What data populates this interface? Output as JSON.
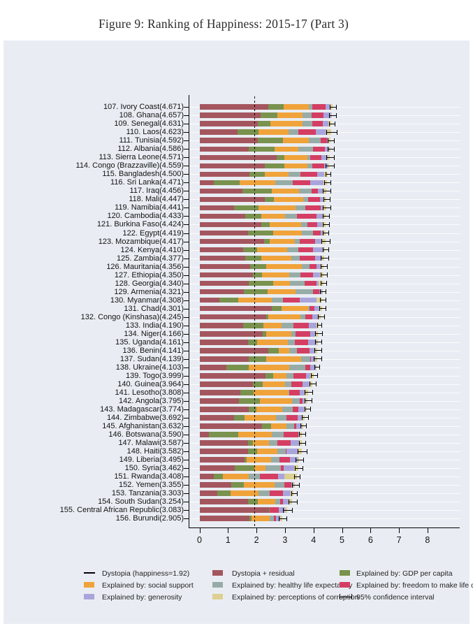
{
  "figure": {
    "title": "Figure 9: Ranking of Happiness: 2015-17 (Part 3)"
  },
  "colors": {
    "panel_bg": "#e9edf3",
    "residual": "#a4565f",
    "gdp": "#79924e",
    "social": "#f0a33a",
    "health": "#97aca7",
    "freedom": "#d53e63",
    "generosity": "#a9a5dc",
    "corruption": "#ddd092",
    "axis": "#000000"
  },
  "legend": {
    "items": [
      {
        "type": "line",
        "key": "dystopia_line",
        "label": "Dystopia (happiness=1.92)"
      },
      {
        "type": "swatch",
        "key": "residual",
        "label": "Dystopia + residual"
      },
      {
        "type": "swatch",
        "key": "gdp",
        "label": "Explained by: GDP per capita"
      },
      {
        "type": "swatch",
        "key": "social",
        "label": "Explained by: social support"
      },
      {
        "type": "swatch",
        "key": "health",
        "label": "Explained by: healthy life expectancy"
      },
      {
        "type": "swatch",
        "key": "freedom",
        "label": "Explained by: freedom to make life choices"
      },
      {
        "type": "swatch",
        "key": "generosity",
        "label": "Explained by: generosity"
      },
      {
        "type": "swatch",
        "key": "corruption",
        "label": "Explained by: perceptions of corruption"
      },
      {
        "type": "errorbar",
        "key": "ci",
        "label": "95% confidence interval"
      }
    ]
  },
  "chart_data": {
    "type": "bar",
    "orientation": "horizontal-stacked",
    "title": "Figure 9: Ranking of Happiness: 2015-17 (Part 3)",
    "xlabel": "",
    "ylabel": "",
    "xlim": [
      0,
      8
    ],
    "x_ticks": [
      "0",
      "1",
      "2",
      "3",
      "4",
      "5",
      "6",
      "7",
      "8"
    ],
    "dystopia_line_value": 1.92,
    "stack_order": [
      "residual",
      "gdp",
      "social",
      "health",
      "freedom",
      "generosity",
      "corruption"
    ],
    "note": "segments = explained-by components; residual = score minus sum of components (Dystopia + residual, drawn first); ci = 95% confidence half-width",
    "countries": [
      {
        "rank": 107,
        "name": "Ivory Coast",
        "score": 4.671,
        "label": "107. Ivory Coast(4.671)",
        "gdp": 0.54,
        "social": 0.87,
        "health": 0.12,
        "freedom": 0.47,
        "generosity": 0.15,
        "corruption": 0.1,
        "ci": 0.1
      },
      {
        "rank": 108,
        "name": "Ghana",
        "score": 4.657,
        "label": "108. Ghana(4.657)",
        "gdp": 0.59,
        "social": 0.9,
        "health": 0.31,
        "freedom": 0.42,
        "generosity": 0.26,
        "corruption": 0.04,
        "ci": 0.1
      },
      {
        "rank": 109,
        "name": "Senegal",
        "score": 4.631,
        "label": "109. Senegal(4.631)",
        "gdp": 0.43,
        "social": 1.14,
        "health": 0.33,
        "freedom": 0.37,
        "generosity": 0.19,
        "corruption": 0.12,
        "ci": 0.09
      },
      {
        "rank": 110,
        "name": "Laos",
        "score": 4.623,
        "label": "110. Laos(4.623)",
        "gdp": 0.72,
        "social": 1.07,
        "health": 0.33,
        "freedom": 0.63,
        "generosity": 0.36,
        "corruption": 0.17,
        "ci": 0.17
      },
      {
        "rank": 111,
        "name": "Tunisia",
        "score": 4.592,
        "label": "111. Tunisia(4.592)",
        "gdp": 0.89,
        "social": 0.9,
        "health": 0.43,
        "freedom": 0.21,
        "generosity": 0.06,
        "corruption": 0.06,
        "ci": 0.09
      },
      {
        "rank": 112,
        "name": "Albania",
        "score": 4.586,
        "label": "112. Albania(4.586)",
        "gdp": 0.92,
        "social": 0.82,
        "health": 0.51,
        "freedom": 0.42,
        "generosity": 0.16,
        "corruption": 0.03,
        "ci": 0.1
      },
      {
        "rank": 113,
        "name": "Sierra Leone",
        "score": 4.571,
        "label": "113. Sierra Leone(4.571)",
        "gdp": 0.26,
        "social": 0.81,
        "health": 0.1,
        "freedom": 0.39,
        "generosity": 0.22,
        "corruption": 0.08,
        "ci": 0.12
      },
      {
        "rank": 114,
        "name": "Congo (Brazzaville)",
        "score": 4.559,
        "label": "114. Congo (Brazzaville)(4.559)",
        "gdp": 0.68,
        "social": 0.81,
        "health": 0.19,
        "freedom": 0.4,
        "generosity": 0.12,
        "corruption": 0.07,
        "ci": 0.13
      },
      {
        "rank": 115,
        "name": "Bangladesh",
        "score": 4.5,
        "label": "115. Bangladesh(4.500)",
        "gdp": 0.53,
        "social": 0.85,
        "health": 0.42,
        "freedom": 0.58,
        "generosity": 0.25,
        "corruption": 0.12,
        "ci": 0.08
      },
      {
        "rank": 116,
        "name": "Sri Lanka",
        "score": 4.471,
        "label": "116. Sri Lanka(4.471)",
        "gdp": 0.92,
        "social": 1.25,
        "health": 0.6,
        "freedom": 0.61,
        "generosity": 0.48,
        "corruption": 0.11,
        "ci": 0.1
      },
      {
        "rank": 117,
        "name": "Iraq",
        "score": 4.456,
        "label": "117. Iraq(4.456)",
        "gdp": 1.01,
        "social": 0.97,
        "health": 0.43,
        "freedom": 0.24,
        "generosity": 0.19,
        "corruption": 0.1,
        "ci": 0.12
      },
      {
        "rank": 118,
        "name": "Mali",
        "score": 4.447,
        "label": "118. Mali(4.447)",
        "gdp": 0.31,
        "social": 1.04,
        "health": 0.16,
        "freedom": 0.41,
        "generosity": 0.14,
        "corruption": 0.09,
        "ci": 0.1
      },
      {
        "rank": 119,
        "name": "Namibia",
        "score": 4.441,
        "label": "119. Namibia(4.441)",
        "gdp": 0.87,
        "social": 1.28,
        "health": 0.36,
        "freedom": 0.52,
        "generosity": 0.1,
        "corruption": 0.1,
        "ci": 0.12
      },
      {
        "rank": 120,
        "name": "Cambodia",
        "score": 4.433,
        "label": "120. Cambodia(4.433)",
        "gdp": 0.55,
        "social": 0.83,
        "health": 0.42,
        "freedom": 0.69,
        "generosity": 0.26,
        "corruption": 0.07,
        "ci": 0.1
      },
      {
        "rank": 121,
        "name": "Burkina Faso",
        "score": 4.424,
        "label": "121. Burkina Faso(4.424)",
        "gdp": 0.31,
        "social": 1.1,
        "health": 0.22,
        "freedom": 0.33,
        "generosity": 0.18,
        "corruption": 0.12,
        "ci": 0.1
      },
      {
        "rank": 122,
        "name": "Egypt",
        "score": 4.419,
        "label": "122. Egypt(4.419)",
        "gdp": 0.87,
        "social": 1.01,
        "health": 0.4,
        "freedom": 0.26,
        "generosity": 0.08,
        "corruption": 0.09,
        "ci": 0.09
      },
      {
        "rank": 123,
        "name": "Mozambique",
        "score": 4.417,
        "label": "123. Mozambique(4.417)",
        "gdp": 0.2,
        "social": 0.9,
        "health": 0.17,
        "freedom": 0.53,
        "generosity": 0.22,
        "corruption": 0.14,
        "ci": 0.13
      },
      {
        "rank": 124,
        "name": "Kenya",
        "score": 4.41,
        "label": "124. Kenya(4.410)",
        "gdp": 0.49,
        "social": 1.05,
        "health": 0.4,
        "freedom": 0.52,
        "generosity": 0.36,
        "corruption": 0.06,
        "ci": 0.08
      },
      {
        "rank": 125,
        "name": "Zambia",
        "score": 4.377,
        "label": "125. Zambia(4.377)",
        "gdp": 0.56,
        "social": 1.05,
        "health": 0.3,
        "freedom": 0.53,
        "generosity": 0.25,
        "corruption": 0.08,
        "ci": 0.12
      },
      {
        "rank": 126,
        "name": "Mauritania",
        "score": 4.356,
        "label": "126. Mauritania(4.356)",
        "gdp": 0.57,
        "social": 1.25,
        "health": 0.27,
        "freedom": 0.25,
        "generosity": 0.14,
        "corruption": 0.1,
        "ci": 0.1
      },
      {
        "rank": 127,
        "name": "Ethiopia",
        "score": 4.35,
        "label": "127. Ethiopia(4.350)",
        "gdp": 0.31,
        "social": 0.95,
        "health": 0.39,
        "freedom": 0.45,
        "generosity": 0.25,
        "corruption": 0.12,
        "ci": 0.09
      },
      {
        "rank": 128,
        "name": "Georgia",
        "score": 4.34,
        "label": "128. Georgia(4.340)",
        "gdp": 0.85,
        "social": 0.59,
        "health": 0.5,
        "freedom": 0.43,
        "generosity": 0.06,
        "corruption": 0.17,
        "ci": 0.09
      },
      {
        "rank": 129,
        "name": "Armenia",
        "score": 4.321,
        "label": "129. Armenia(4.321)",
        "gdp": 0.82,
        "social": 0.99,
        "health": 0.6,
        "freedom": 0.24,
        "generosity": 0.08,
        "corruption": 0.03,
        "ci": 0.09
      },
      {
        "rank": 130,
        "name": "Myanmar",
        "score": 4.308,
        "label": "130. Myanmar(4.308)",
        "gdp": 0.68,
        "social": 1.17,
        "health": 0.4,
        "freedom": 0.58,
        "generosity": 0.6,
        "corruption": 0.19,
        "ci": 0.09
      },
      {
        "rank": 131,
        "name": "Chad",
        "score": 4.301,
        "label": "131. Chad(4.301)",
        "gdp": 0.36,
        "social": 0.91,
        "health": 0.05,
        "freedom": 0.19,
        "generosity": 0.18,
        "corruption": 0.08,
        "ci": 0.1
      },
      {
        "rank": 132,
        "name": "Congo (Kinshasa)",
        "score": 4.245,
        "label": "132. Congo (Kinshasa)(4.245)",
        "gdp": 0.07,
        "social": 1.13,
        "health": 0.18,
        "freedom": 0.24,
        "generosity": 0.22,
        "corruption": 0.06,
        "ci": 0.1
      },
      {
        "rank": 133,
        "name": "India",
        "score": 4.19,
        "label": "133. India(4.190)",
        "gdp": 0.72,
        "social": 0.64,
        "health": 0.41,
        "freedom": 0.54,
        "generosity": 0.26,
        "corruption": 0.09,
        "ci": 0.06
      },
      {
        "rank": 134,
        "name": "Niger",
        "score": 4.166,
        "label": "134. Niger(4.166)",
        "gdp": 0.13,
        "social": 0.87,
        "health": 0.16,
        "freedom": 0.5,
        "generosity": 0.19,
        "corruption": 0.1,
        "ci": 0.1
      },
      {
        "rank": 135,
        "name": "Uganda",
        "score": 4.161,
        "label": "135. Uganda(4.161)",
        "gdp": 0.32,
        "social": 1.09,
        "health": 0.24,
        "freedom": 0.46,
        "generosity": 0.29,
        "corruption": 0.06,
        "ci": 0.1
      },
      {
        "rank": 136,
        "name": "Benin",
        "score": 4.141,
        "label": "136. Benin(4.141)",
        "gdp": 0.38,
        "social": 0.37,
        "health": 0.25,
        "freedom": 0.44,
        "generosity": 0.21,
        "corruption": 0.08,
        "ci": 0.11
      },
      {
        "rank": 137,
        "name": "Sudan",
        "score": 4.139,
        "label": "137. Sudan(4.139)",
        "gdp": 0.61,
        "social": 1.24,
        "health": 0.31,
        "freedom": 0.02,
        "generosity": 0.15,
        "corruption": 0.09,
        "ci": 0.12
      },
      {
        "rank": 138,
        "name": "Ukraine",
        "score": 4.103,
        "label": "138. Ukraine(4.103)",
        "gdp": 0.79,
        "social": 1.41,
        "health": 0.56,
        "freedom": 0.18,
        "generosity": 0.21,
        "corruption": 0.01,
        "ci": 0.08
      },
      {
        "rank": 139,
        "name": "Togo",
        "score": 3.999,
        "label": "139. Togo(3.999)",
        "gdp": 0.26,
        "social": 0.47,
        "health": 0.25,
        "freedom": 0.43,
        "generosity": 0.16,
        "corruption": 0.11,
        "ci": 0.1
      },
      {
        "rank": 140,
        "name": "Guinea",
        "score": 3.964,
        "label": "140. Guinea(3.964)",
        "gdp": 0.34,
        "social": 0.79,
        "health": 0.21,
        "freedom": 0.39,
        "generosity": 0.25,
        "corruption": 0.11,
        "ci": 0.1
      },
      {
        "rank": 141,
        "name": "Lesotho",
        "score": 3.808,
        "label": "141. Lesotho(3.808)",
        "gdp": 0.47,
        "social": 1.22,
        "health": 0.02,
        "freedom": 0.39,
        "generosity": 0.16,
        "corruption": 0.12,
        "ci": 0.12
      },
      {
        "rank": 142,
        "name": "Angola",
        "score": 3.795,
        "label": "142. Angola(3.795)",
        "gdp": 0.73,
        "social": 1.13,
        "health": 0.27,
        "freedom": 0.11,
        "generosity": 0.1,
        "corruption": 0.07,
        "ci": 0.11
      },
      {
        "rank": 143,
        "name": "Madagascar",
        "score": 3.774,
        "label": "143. Madagascar(3.774)",
        "gdp": 0.26,
        "social": 0.91,
        "health": 0.38,
        "freedom": 0.19,
        "generosity": 0.22,
        "corruption": 0.08,
        "ci": 0.09
      },
      {
        "rank": 144,
        "name": "Zimbabwe",
        "score": 3.692,
        "label": "144. Zimbabwe(3.692)",
        "gdp": 0.36,
        "social": 1.09,
        "health": 0.37,
        "freedom": 0.41,
        "generosity": 0.15,
        "corruption": 0.09,
        "ci": 0.09
      },
      {
        "rank": 145,
        "name": "Afghanistan",
        "score": 3.632,
        "label": "145. Afghanistan(3.632)",
        "gdp": 0.33,
        "social": 0.54,
        "health": 0.26,
        "freedom": 0.09,
        "generosity": 0.19,
        "corruption": 0.04,
        "ci": 0.09
      },
      {
        "rank": 146,
        "name": "Botswana",
        "score": 3.59,
        "label": "146. Botswana(3.590)",
        "gdp": 1.02,
        "social": 1.17,
        "health": 0.42,
        "freedom": 0.51,
        "generosity": 0.03,
        "corruption": 0.1,
        "ci": 0.09
      },
      {
        "rank": 147,
        "name": "Malawi",
        "score": 3.587,
        "label": "147. Malawi(3.587)",
        "gdp": 0.19,
        "social": 0.54,
        "health": 0.31,
        "freedom": 0.47,
        "generosity": 0.29,
        "corruption": 0.09,
        "ci": 0.1
      },
      {
        "rank": 148,
        "name": "Haiti",
        "score": 3.582,
        "label": "148. Haiti(3.582)",
        "gdp": 0.32,
        "social": 0.71,
        "health": 0.29,
        "freedom": 0.03,
        "generosity": 0.42,
        "corruption": 0.11,
        "ci": 0.15
      },
      {
        "rank": 149,
        "name": "Liberia",
        "score": 3.495,
        "label": "149. Liberia(3.495)",
        "gdp": 0.08,
        "social": 0.86,
        "health": 0.27,
        "freedom": 0.37,
        "generosity": 0.28,
        "corruption": 0.05,
        "ci": 0.13
      },
      {
        "rank": 150,
        "name": "Syria",
        "score": 3.462,
        "label": "150. Syria(3.462)",
        "gdp": 0.69,
        "social": 0.38,
        "health": 0.54,
        "freedom": 0.09,
        "generosity": 0.38,
        "corruption": 0.14,
        "ci": 0.12
      },
      {
        "rank": 151,
        "name": "Rwanda",
        "score": 3.408,
        "label": "151. Rwanda(3.408)",
        "gdp": 0.33,
        "social": 0.9,
        "health": 0.4,
        "freedom": 0.64,
        "generosity": 0.2,
        "corruption": 0.44,
        "ci": 0.08
      },
      {
        "rank": 152,
        "name": "Yemen",
        "score": 3.355,
        "label": "152. Yemen(3.355)",
        "gdp": 0.44,
        "social": 1.07,
        "health": 0.34,
        "freedom": 0.24,
        "generosity": 0.08,
        "corruption": 0.06,
        "ci": 0.11
      },
      {
        "rank": 153,
        "name": "Tanzania",
        "score": 3.303,
        "label": "153. Tanzania(3.303)",
        "gdp": 0.46,
        "social": 0.99,
        "health": 0.38,
        "freedom": 0.48,
        "generosity": 0.27,
        "corruption": 0.1,
        "ci": 0.09
      },
      {
        "rank": 154,
        "name": "South Sudan",
        "score": 3.254,
        "label": "154. South Sudan(3.254)",
        "gdp": 0.34,
        "social": 0.61,
        "health": 0.18,
        "freedom": 0.1,
        "generosity": 0.19,
        "corruption": 0.13,
        "ci": 0.14
      },
      {
        "rank": 155,
        "name": "Central African Republic",
        "score": 3.083,
        "label": "155. Central African Republic(3.083)",
        "gdp": 0.02,
        "social": 0.0,
        "health": 0.01,
        "freedom": 0.31,
        "generosity": 0.22,
        "corruption": 0.08,
        "ci": 0.15
      },
      {
        "rank": 156,
        "name": "Burundi",
        "score": 2.905,
        "label": "156. Burundi(2.905)",
        "gdp": 0.09,
        "social": 0.63,
        "health": 0.15,
        "freedom": 0.06,
        "generosity": 0.15,
        "corruption": 0.08,
        "ci": 0.12
      }
    ]
  }
}
